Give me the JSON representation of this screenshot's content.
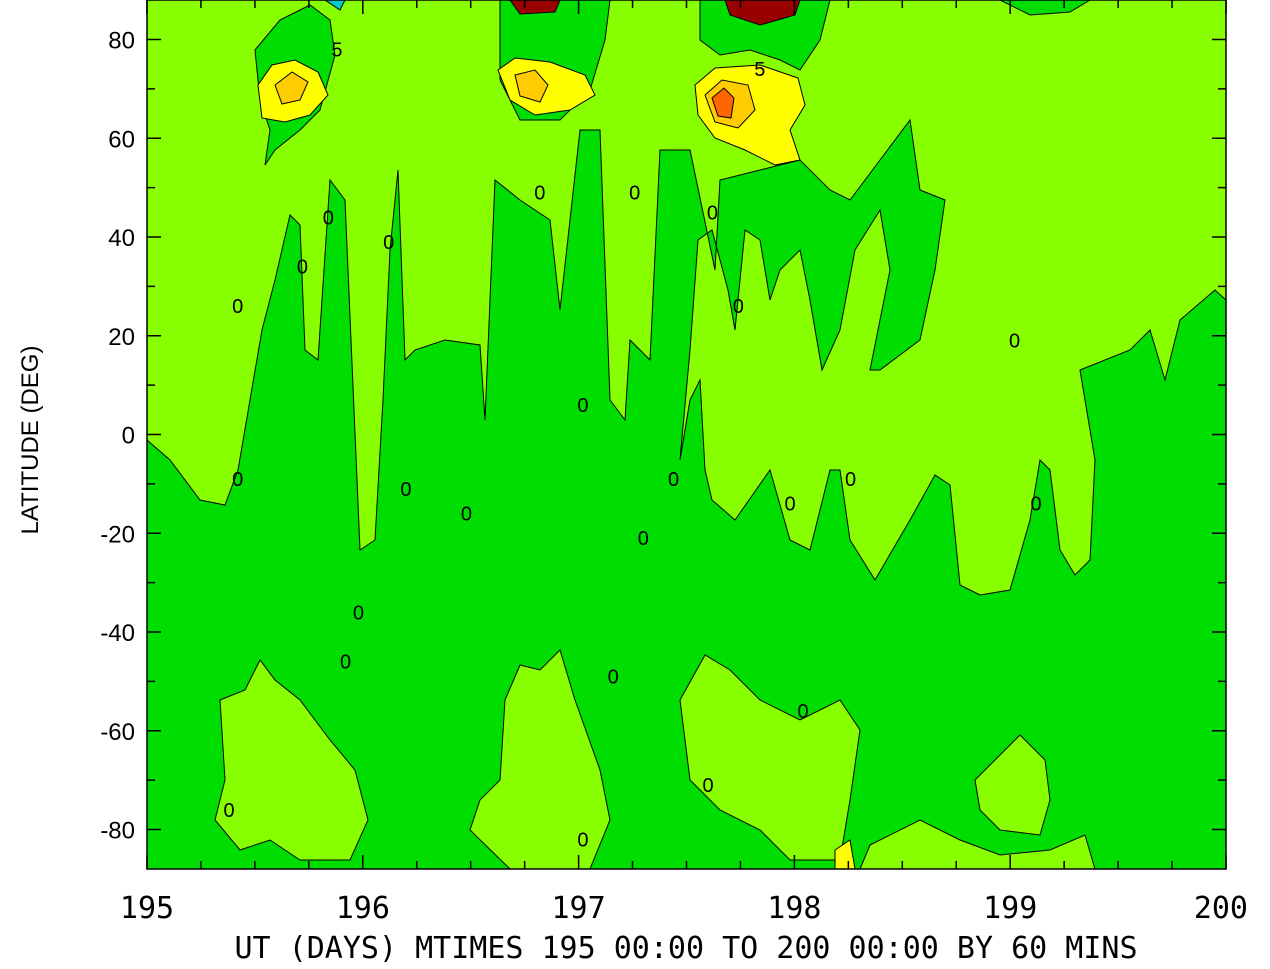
{
  "chart_data": {
    "type": "heatmap",
    "subtype": "filled-contour",
    "ylabel": "LATITUDE (DEG)",
    "xlabel": "UT (DAYS) MTIMES 195 00:00 TO 200 00:00 BY   60 MINS",
    "xlim": [
      195,
      200
    ],
    "ylim": [
      -88,
      88
    ],
    "x_ticks": [
      195,
      196,
      197,
      198,
      199,
      200
    ],
    "x_tick_labels": [
      "195",
      "196",
      "197",
      "198",
      "199",
      "200"
    ],
    "y_ticks": [
      -80,
      -60,
      -40,
      -20,
      0,
      20,
      40,
      60,
      80
    ],
    "y_tick_labels": [
      "-80",
      "-60",
      "-40",
      "-20",
      "0",
      "20",
      "40",
      "60",
      "80"
    ],
    "contour_levels_shown": [
      "0",
      "5"
    ],
    "fill_colors": {
      "below_zero": "#00dd00",
      "near_zero": "#88ff00",
      "low_positive": "#ffff00",
      "mid_positive": "#ffcc00",
      "high_positive": "#ff6600",
      "peak": "#990000",
      "negative_peak": "#00cccc"
    },
    "contour_labels": [
      {
        "text": "0",
        "x": 195.42,
        "y": 26
      },
      {
        "text": "0",
        "x": 195.72,
        "y": 34
      },
      {
        "text": "0",
        "x": 195.84,
        "y": 44
      },
      {
        "text": "0",
        "x": 196.12,
        "y": 39
      },
      {
        "text": "0",
        "x": 196.82,
        "y": 49
      },
      {
        "text": "0",
        "x": 197.26,
        "y": 49
      },
      {
        "text": "0",
        "x": 197.62,
        "y": 45
      },
      {
        "text": "0",
        "x": 197.74,
        "y": 26
      },
      {
        "text": "0",
        "x": 199.02,
        "y": 19
      },
      {
        "text": "0",
        "x": 197.02,
        "y": 6
      },
      {
        "text": "0",
        "x": 195.42,
        "y": -9
      },
      {
        "text": "0",
        "x": 196.2,
        "y": -11
      },
      {
        "text": "0",
        "x": 196.48,
        "y": -16
      },
      {
        "text": "0",
        "x": 197.44,
        "y": -9
      },
      {
        "text": "0",
        "x": 197.98,
        "y": -14
      },
      {
        "text": "0",
        "x": 198.26,
        "y": -9
      },
      {
        "text": "0",
        "x": 199.12,
        "y": -14
      },
      {
        "text": "0",
        "x": 197.3,
        "y": -21
      },
      {
        "text": "0",
        "x": 195.98,
        "y": -36
      },
      {
        "text": "0",
        "x": 195.92,
        "y": -46
      },
      {
        "text": "0",
        "x": 197.16,
        "y": -49
      },
      {
        "text": "0",
        "x": 198.04,
        "y": -56
      },
      {
        "text": "0",
        "x": 197.6,
        "y": -71
      },
      {
        "text": "0",
        "x": 195.38,
        "y": -76
      },
      {
        "text": "0",
        "x": 197.02,
        "y": -82
      },
      {
        "text": "5",
        "x": 195.88,
        "y": 78
      },
      {
        "text": "5",
        "x": 197.84,
        "y": 74
      }
    ]
  }
}
